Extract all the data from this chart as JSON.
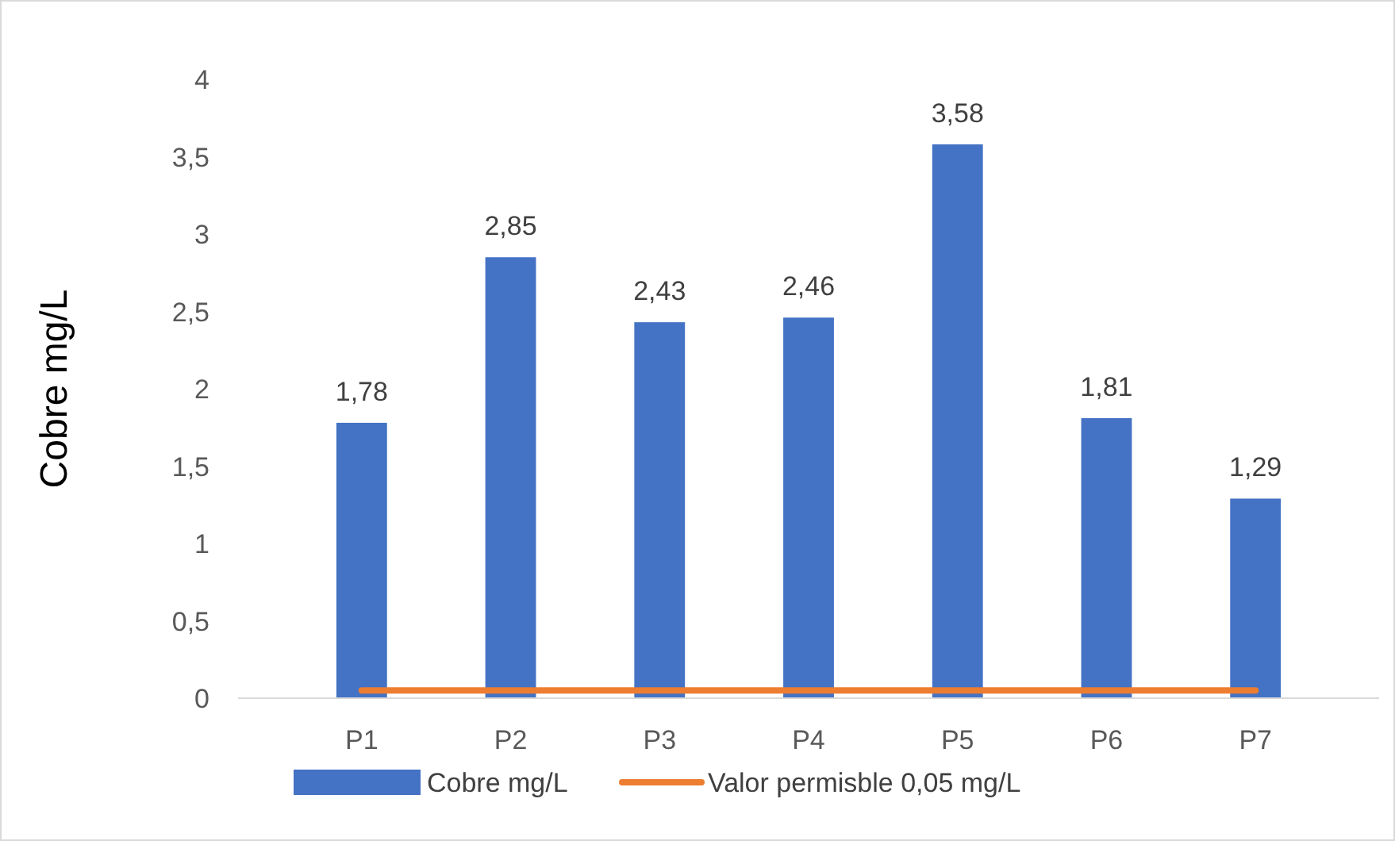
{
  "chart_data": {
    "type": "bar",
    "ylabel": "Cobre mg/L",
    "categories": [
      "P1",
      "P2",
      "P3",
      "P4",
      "P5",
      "P6",
      "P7"
    ],
    "series": [
      {
        "name": "Cobre mg/L",
        "color": "#4472c4",
        "values": [
          1.78,
          2.85,
          2.43,
          2.46,
          3.58,
          1.81,
          1.29
        ],
        "value_labels": [
          "1,78",
          "2,85",
          "2,43",
          "2,46",
          "3,58",
          "1,81",
          "1,29"
        ]
      },
      {
        "name": "Valor permisble 0,05 mg/L",
        "type": "line",
        "color": "#ed7d31",
        "values": [
          0.05,
          0.05,
          0.05,
          0.05,
          0.05,
          0.05,
          0.05
        ]
      }
    ],
    "ylim": [
      0,
      4
    ],
    "yticks": [
      0,
      {
        "value": 0.5,
        "label": "0,5"
      },
      1,
      {
        "value": 1.5,
        "label": "1,5"
      },
      2,
      {
        "value": 2.5,
        "label": "2,5"
      },
      3,
      {
        "value": 3.5,
        "label": "3,5"
      },
      4
    ],
    "grid": false,
    "legend": "bottom",
    "marker": "none"
  }
}
